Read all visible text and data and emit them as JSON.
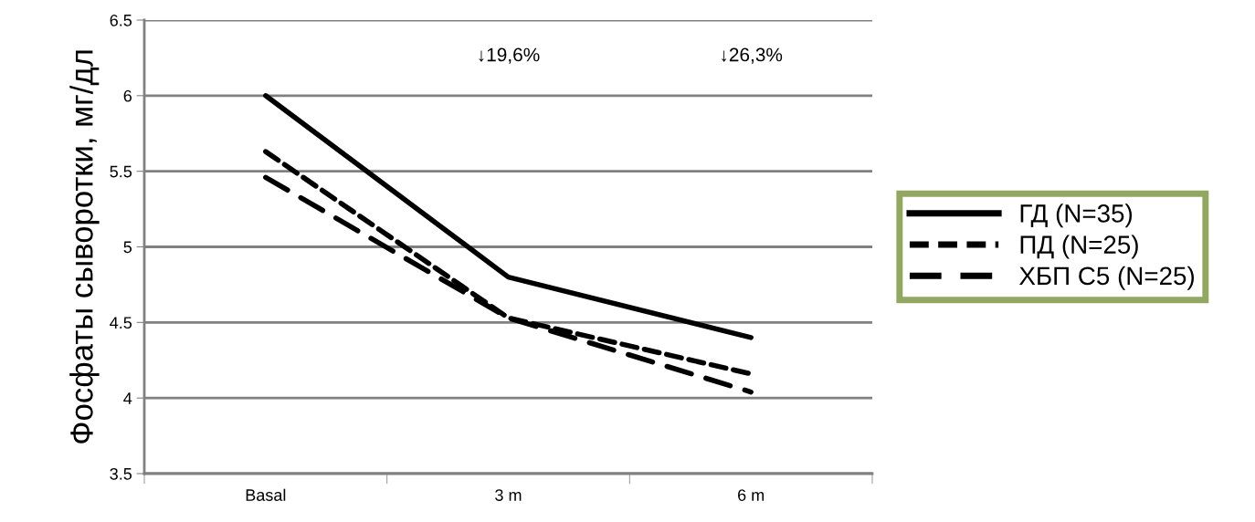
{
  "chart_data": {
    "type": "line",
    "ylabel": "Фосфаты сыворотки, мг/дл",
    "categories": [
      "Basal",
      "3 m",
      "6 m"
    ],
    "series": [
      {
        "name": "ГД (N=35)",
        "color": "#000000",
        "line_style": "solid",
        "values": [
          6.0,
          4.8,
          4.4
        ]
      },
      {
        "name": "ПД (N=25)",
        "color": "#000000",
        "line_style": "dashed",
        "values": [
          5.63,
          4.53,
          4.16
        ]
      },
      {
        "name": "ХБП С5 (N=25)",
        "color": "#000000",
        "line_style": "longdash",
        "values": [
          5.46,
          4.53,
          4.04
        ]
      }
    ],
    "annotations": [
      "↓19,6%",
      "↓26,3%"
    ],
    "ylim": [
      3.5,
      6.5
    ],
    "yticks": [
      3.5,
      4,
      4.5,
      5,
      5.5,
      6,
      6.5
    ],
    "grid": "y",
    "legend": "right",
    "marker": "none"
  }
}
